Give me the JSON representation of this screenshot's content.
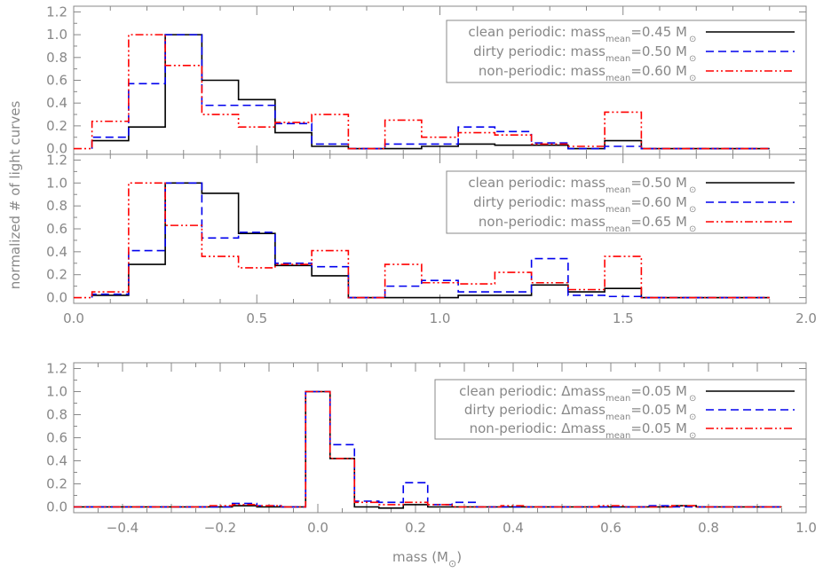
{
  "figure": {
    "ylabel": "normalized # of light curves",
    "xlabel_main": "mass (M",
    "xlabel_close": ")",
    "sun_symbol": "⊙"
  },
  "chart_data": [
    {
      "type": "line",
      "step": true,
      "xlim": [
        0.0,
        2.0
      ],
      "ylim": [
        -0.05,
        1.25
      ],
      "yticks": [
        "0.0",
        "0.2",
        "0.4",
        "0.6",
        "0.8",
        "1.0",
        "1.2"
      ],
      "xticks": [],
      "legend_position": "top-right",
      "series": [
        {
          "name": "clean periodic",
          "color": "#000000",
          "dash": "solid",
          "legend": {
            "prefix": "clean periodic: mass",
            "sub": "mean",
            "suffix": "=0.45 M"
          },
          "edges": [
            0.05,
            0.15,
            0.25,
            0.35,
            0.45,
            0.55,
            0.65,
            0.75,
            0.85,
            0.95,
            1.05,
            1.15,
            1.25,
            1.35,
            1.45,
            1.55,
            1.9
          ],
          "values": [
            0.07,
            0.19,
            1.0,
            0.6,
            0.43,
            0.14,
            0.02,
            0.0,
            0.0,
            0.02,
            0.04,
            0.03,
            0.03,
            0.0,
            0.07,
            0.0
          ]
        },
        {
          "name": "dirty periodic",
          "color": "#0000ee",
          "dash": "dashed",
          "legend": {
            "prefix": "dirty periodic: mass",
            "sub": "mean",
            "suffix": "=0.50 M"
          },
          "edges": [
            0.05,
            0.15,
            0.25,
            0.35,
            0.45,
            0.55,
            0.65,
            0.75,
            0.85,
            0.95,
            1.05,
            1.15,
            1.25,
            1.35,
            1.45,
            1.55,
            1.9
          ],
          "values": [
            0.1,
            0.57,
            1.0,
            0.38,
            0.38,
            0.22,
            0.04,
            0.0,
            0.04,
            0.04,
            0.19,
            0.15,
            0.05,
            0.0,
            0.02,
            0.0
          ]
        },
        {
          "name": "non-periodic",
          "color": "#ff0000",
          "dash": "dashdotdot",
          "legend": {
            "prefix": "non-periodic: mass",
            "sub": "mean",
            "suffix": "=0.60 M"
          },
          "edges": [
            0.0,
            0.05,
            0.15,
            0.25,
            0.35,
            0.45,
            0.55,
            0.65,
            0.75,
            0.85,
            0.95,
            1.05,
            1.15,
            1.25,
            1.35,
            1.45,
            1.55,
            1.9
          ],
          "values": [
            0.0,
            0.24,
            1.0,
            0.73,
            0.3,
            0.19,
            0.23,
            0.3,
            0.0,
            0.25,
            0.1,
            0.14,
            0.12,
            0.04,
            0.02,
            0.32,
            0.0
          ]
        }
      ]
    },
    {
      "type": "line",
      "step": true,
      "xlim": [
        0.0,
        2.0
      ],
      "ylim": [
        -0.05,
        1.25
      ],
      "yticks": [
        "0.0",
        "0.2",
        "0.4",
        "0.6",
        "0.8",
        "1.0",
        "1.2"
      ],
      "xticks": [
        "0.0",
        "0.5",
        "1.0",
        "1.5",
        "2.0"
      ],
      "legend_position": "top-right",
      "series": [
        {
          "name": "clean periodic",
          "color": "#000000",
          "dash": "solid",
          "legend": {
            "prefix": "clean periodic: mass",
            "sub": "mean",
            "suffix": "=0.50 M"
          },
          "edges": [
            0.05,
            0.15,
            0.25,
            0.35,
            0.45,
            0.55,
            0.65,
            0.75,
            0.85,
            0.95,
            1.05,
            1.15,
            1.25,
            1.35,
            1.45,
            1.55,
            1.9
          ],
          "values": [
            0.02,
            0.29,
            1.0,
            0.91,
            0.56,
            0.28,
            0.19,
            0.0,
            0.0,
            0.0,
            0.02,
            0.02,
            0.11,
            0.05,
            0.08,
            0.0
          ]
        },
        {
          "name": "dirty periodic",
          "color": "#0000ee",
          "dash": "dashed",
          "legend": {
            "prefix": "dirty periodic: mass",
            "sub": "mean",
            "suffix": "=0.60 M"
          },
          "edges": [
            0.05,
            0.15,
            0.25,
            0.35,
            0.45,
            0.55,
            0.65,
            0.75,
            0.85,
            0.95,
            1.05,
            1.15,
            1.25,
            1.35,
            1.45,
            1.55,
            1.9
          ],
          "values": [
            0.03,
            0.41,
            1.0,
            0.52,
            0.57,
            0.3,
            0.27,
            0.0,
            0.1,
            0.15,
            0.05,
            0.05,
            0.34,
            0.02,
            0.01,
            0.0
          ]
        },
        {
          "name": "non-periodic",
          "color": "#ff0000",
          "dash": "dashdotdot",
          "legend": {
            "prefix": "non-periodic: mass",
            "sub": "mean",
            "suffix": "=0.65 M"
          },
          "edges": [
            0.0,
            0.05,
            0.15,
            0.25,
            0.35,
            0.45,
            0.55,
            0.65,
            0.75,
            0.85,
            0.95,
            1.05,
            1.15,
            1.25,
            1.35,
            1.45,
            1.55,
            1.9
          ],
          "values": [
            0.0,
            0.05,
            1.0,
            0.63,
            0.36,
            0.26,
            0.29,
            0.41,
            0.0,
            0.29,
            0.13,
            0.12,
            0.22,
            0.13,
            0.07,
            0.36,
            0.0
          ]
        }
      ]
    },
    {
      "type": "line",
      "step": true,
      "xlim": [
        -0.5,
        1.0
      ],
      "ylim": [
        -0.05,
        1.25
      ],
      "yticks": [
        "0.0",
        "0.2",
        "0.4",
        "0.6",
        "0.8",
        "1.0",
        "1.2"
      ],
      "xticks": [
        "−0.4",
        "−0.2",
        "0.0",
        "0.2",
        "0.4",
        "0.6",
        "0.8",
        "1.0"
      ],
      "legend_position": "top-right",
      "series": [
        {
          "name": "clean periodic",
          "color": "#000000",
          "dash": "solid",
          "legend": {
            "prefix": "clean periodic: Δmass",
            "sub": "mean",
            "suffix": "=0.05 M"
          },
          "edges": [
            -0.5,
            -0.175,
            -0.125,
            -0.075,
            -0.025,
            0.025,
            0.075,
            0.125,
            0.175,
            0.225,
            0.275,
            0.725,
            0.775,
            0.95
          ],
          "values": [
            0.0,
            0.01,
            0.0,
            0.0,
            1.0,
            0.42,
            0.0,
            -0.01,
            0.02,
            0.0,
            0.0,
            0.01,
            0.0
          ]
        },
        {
          "name": "dirty periodic",
          "color": "#0000ee",
          "dash": "dashed",
          "legend": {
            "prefix": "dirty periodic: Δmass",
            "sub": "mean",
            "suffix": "=0.05 M"
          },
          "edges": [
            -0.5,
            -0.175,
            -0.125,
            -0.075,
            -0.025,
            0.025,
            0.075,
            0.125,
            0.175,
            0.225,
            0.275,
            0.325,
            0.675,
            0.725,
            0.95
          ],
          "values": [
            0.0,
            0.03,
            0.01,
            0.0,
            1.0,
            0.54,
            0.05,
            0.04,
            0.21,
            0.02,
            0.04,
            0.0,
            0.01,
            0.0
          ]
        },
        {
          "name": "non-periodic",
          "color": "#ff0000",
          "dash": "dashdotdot",
          "legend": {
            "prefix": "non-periodic: Δmass",
            "sub": "mean",
            "suffix": "=0.05 M"
          },
          "edges": [
            -0.5,
            -0.225,
            -0.175,
            -0.125,
            -0.075,
            -0.025,
            0.025,
            0.075,
            0.125,
            0.175,
            0.225,
            0.275,
            0.375,
            0.425,
            0.575,
            0.625,
            0.725,
            0.775,
            0.95
          ],
          "values": [
            0.0,
            0.01,
            0.02,
            0.01,
            0.0,
            1.0,
            0.42,
            0.04,
            0.02,
            0.04,
            0.02,
            0.0,
            0.01,
            0.0,
            0.01,
            0.0,
            0.01,
            0.0
          ]
        }
      ]
    }
  ]
}
